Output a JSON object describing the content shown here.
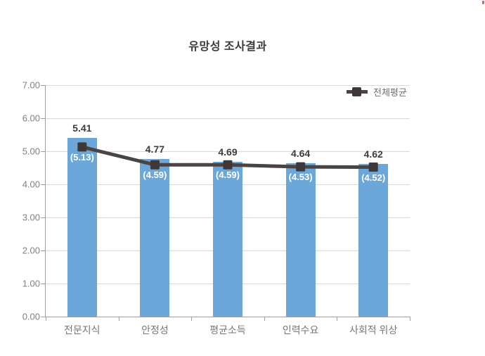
{
  "colors": {
    "bar": "#6BA7D8",
    "line": "#4A4443",
    "marker": "#3E3938",
    "grid": "#D9D9D9",
    "axis": "#9E9E9E",
    "title_text": "#3C3C3C",
    "value_text": "#3D3D3D",
    "inner_text": "#FFFFFF",
    "ytick_text": "#808080",
    "category_text": "#767676",
    "legend_text": "#6E6E6E"
  },
  "chart_data": {
    "type": "bar",
    "overlay": "line",
    "title": "유망성 조사결과",
    "categories": [
      "전문지식",
      "안정성",
      "평균소득",
      "인력수요",
      "사회적 위상"
    ],
    "series": [
      {
        "name": "",
        "type": "bar",
        "values": [
          5.41,
          4.77,
          4.69,
          4.64,
          4.62
        ],
        "labels": [
          "5.41",
          "4.77",
          "4.69",
          "4.64",
          "4.62"
        ]
      },
      {
        "name": "전체평균",
        "type": "line",
        "values": [
          5.13,
          4.59,
          4.59,
          4.53,
          4.52
        ],
        "labels": [
          "(5.13)",
          "(4.59)",
          "(4.59)",
          "(4.53)",
          "(4.52)"
        ]
      }
    ],
    "xlabel": "",
    "ylabel": "",
    "ylim": [
      0,
      7
    ],
    "ytick_labels_top_to_bottom": [
      "7.00",
      "6.00",
      "5.00",
      "4.00",
      "3.00",
      "2.00",
      "1.00",
      "0.00"
    ],
    "grid": true,
    "legend_position": "top-right-inside"
  }
}
